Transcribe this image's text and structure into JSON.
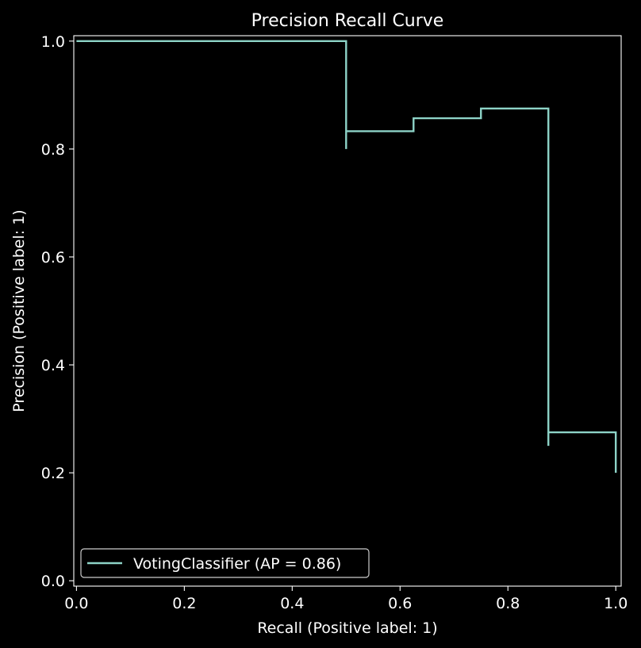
{
  "chart_data": {
    "type": "line",
    "title": "Precision Recall Curve",
    "xlabel": "Recall (Positive label: 1)",
    "ylabel": "Precision (Positive label: 1)",
    "xlim": [
      -0.005,
      1.01
    ],
    "ylim": [
      -0.01,
      1.01
    ],
    "xticks": [
      0.0,
      0.2,
      0.4,
      0.6,
      0.8,
      1.0
    ],
    "xtick_labels": [
      "0.0",
      "0.2",
      "0.4",
      "0.6",
      "0.8",
      "1.0"
    ],
    "yticks": [
      0.0,
      0.2,
      0.4,
      0.6,
      0.8,
      1.0
    ],
    "ytick_labels": [
      "0.0",
      "0.2",
      "0.4",
      "0.6",
      "0.8",
      "1.0"
    ],
    "grid": false,
    "legend_position": "lower-left",
    "colors": {
      "background": "#000000",
      "axes": "#ffffff",
      "series": "#8dd3c7"
    },
    "series": [
      {
        "name": "VotingClassifier (AP = 0.86)",
        "drawstyle": "steps-post",
        "recall": [
          0.0,
          0.5,
          0.5,
          0.5,
          0.625,
          0.625,
          0.75,
          0.75,
          0.875,
          0.875,
          0.875,
          1.0,
          1.0
        ],
        "precision": [
          1.0,
          1.0,
          0.8,
          0.833,
          0.833,
          0.857,
          0.857,
          0.875,
          0.875,
          0.25,
          0.275,
          0.275,
          0.2
        ]
      }
    ]
  }
}
